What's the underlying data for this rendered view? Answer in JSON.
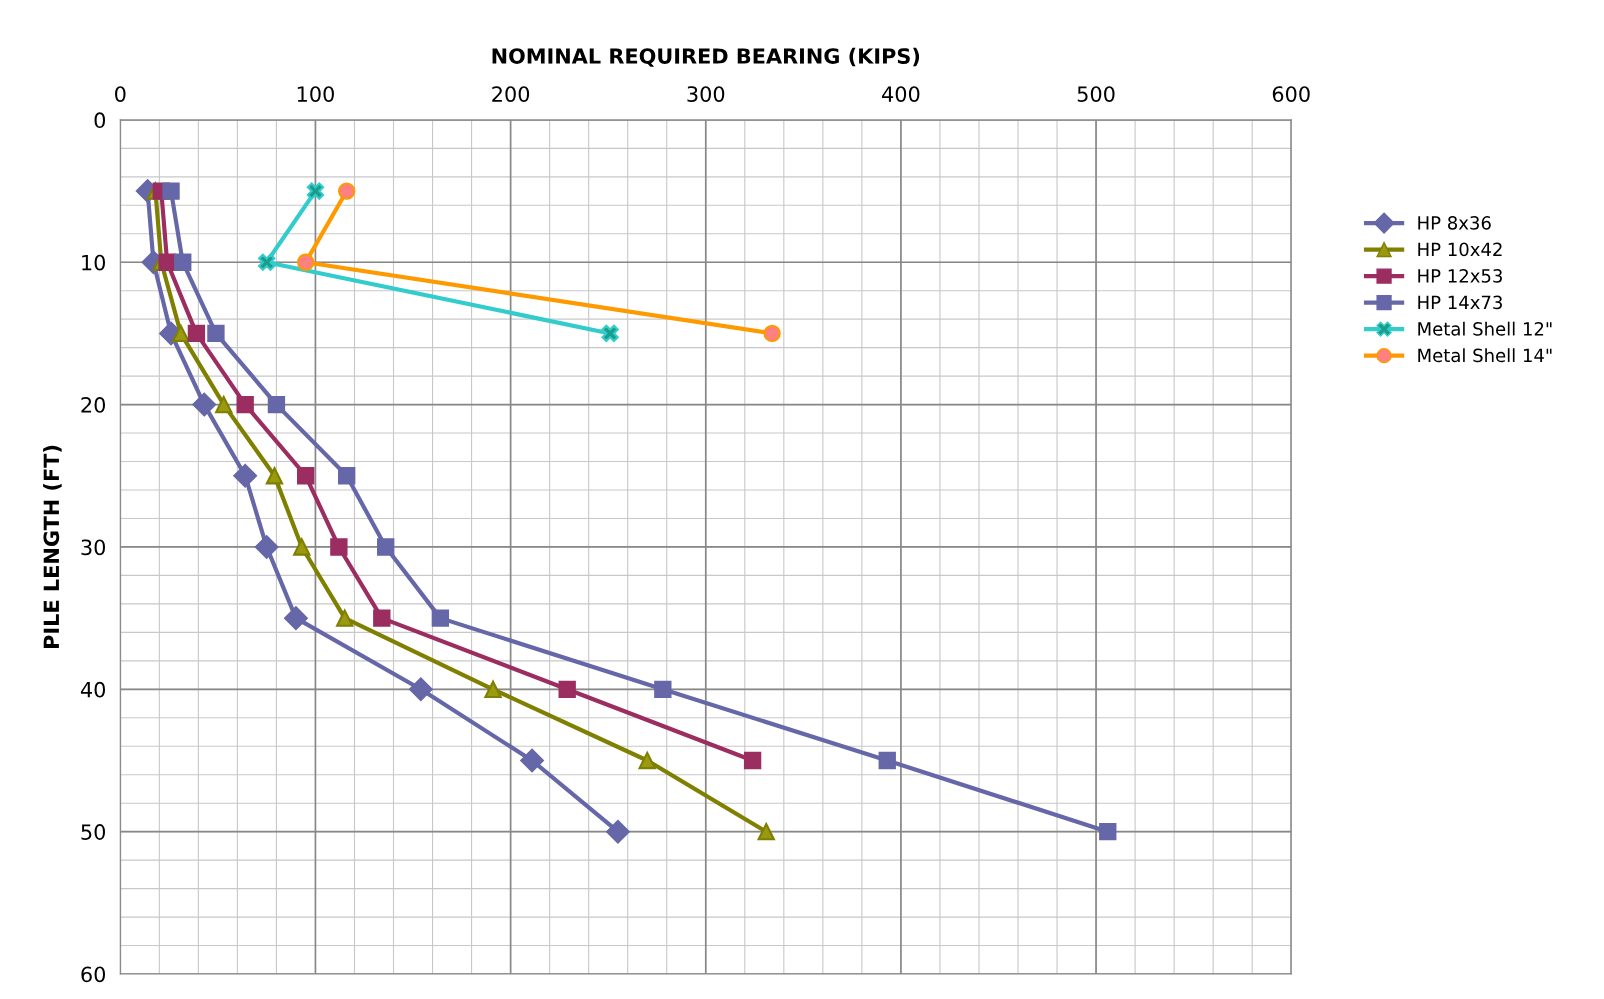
{
  "chart_data": {
    "type": "line",
    "xlabel": "NOMINAL REQUIRED BEARING (KIPS)",
    "ylabel": "PILE LENGTH (FT)",
    "orientation": "horizontal",
    "x": [
      5,
      10,
      15,
      20,
      25,
      30,
      35,
      40,
      45,
      50
    ],
    "xlim": [
      0,
      600
    ],
    "xticks": [
      0,
      100,
      200,
      300,
      400,
      500,
      600
    ],
    "ylim": [
      60,
      0
    ],
    "yticks": [
      0,
      10,
      20,
      30,
      40,
      50,
      60
    ],
    "grid": true,
    "legend": "right",
    "series": [
      {
        "name": "HP 8x36",
        "color": "#6667a8",
        "marker": "diamond",
        "values": [
          14,
          17,
          26,
          43,
          64,
          75,
          90,
          154,
          211,
          255
        ]
      },
      {
        "name": "HP 10x42",
        "color": "#7f7f00",
        "marker": "triangle",
        "values": [
          18,
          21,
          31,
          53,
          79,
          93,
          115,
          191,
          270,
          331
        ]
      },
      {
        "name": "HP 12x53",
        "color": "#9b2d60",
        "marker": "square",
        "values": [
          21,
          24,
          39,
          64,
          95,
          112,
          134,
          229,
          324,
          null
        ]
      },
      {
        "name": "HP 14x73",
        "color": "#6667a8",
        "marker": "square",
        "values": [
          26,
          32,
          49,
          80,
          116,
          136,
          164,
          278,
          393,
          506
        ]
      },
      {
        "name": "Metal Shell 12\"",
        "color": "#33cccc",
        "marker": "cross",
        "values": [
          100,
          75,
          251,
          null,
          null,
          null,
          null,
          null,
          null,
          null
        ]
      },
      {
        "name": "Metal Shell 14\"",
        "color": "#ff9900",
        "marker": "circle",
        "values": [
          116,
          95,
          334,
          null,
          null,
          null,
          null,
          null,
          null,
          null
        ]
      }
    ]
  }
}
